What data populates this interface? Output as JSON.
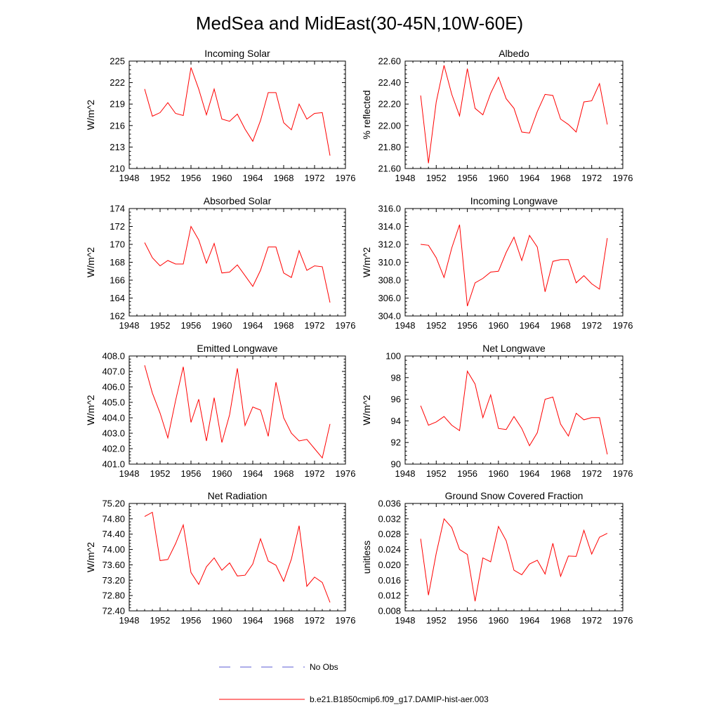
{
  "figure": {
    "title": "MedSea and MidEast(30-45N,10W-60E)"
  },
  "legend": {
    "items": [
      {
        "label": "No Obs",
        "style": "dashed",
        "color": "#5b5bd6"
      },
      {
        "label": "b.e21.B1850cmip6.f09_g17.DAMIP-hist-aer.003",
        "style": "solid",
        "color": "#ff0000"
      }
    ]
  },
  "chart_data": [
    {
      "type": "line",
      "title": "Incoming Solar",
      "ylabel": "W/m^2",
      "xlim": [
        1948,
        1976
      ],
      "ylim": [
        210,
        225
      ],
      "xticks": [
        "1948",
        "1952",
        "1956",
        "1960",
        "1964",
        "1968",
        "1972",
        "1976"
      ],
      "yticks": [
        "210",
        "213",
        "216",
        "219",
        "222",
        "225"
      ],
      "x": [
        1950,
        1951,
        1952,
        1953,
        1954,
        1955,
        1956,
        1957,
        1958,
        1959,
        1960,
        1961,
        1962,
        1963,
        1964,
        1965,
        1966,
        1967,
        1968,
        1969,
        1970,
        1971,
        1972,
        1973,
        1974
      ],
      "series": [
        {
          "values": [
            221.1,
            217.3,
            217.8,
            219.2,
            217.7,
            217.4,
            224.1,
            221.1,
            217.5,
            221.1,
            216.9,
            216.6,
            217.6,
            215.5,
            213.8,
            216.7,
            220.6,
            220.6,
            216.4,
            215.4,
            219.0,
            216.9,
            217.7,
            217.8,
            211.8
          ]
        }
      ]
    },
    {
      "type": "line",
      "title": "Albedo",
      "ylabel": "% reflected",
      "xlim": [
        1948,
        1976
      ],
      "ylim": [
        21.6,
        22.6
      ],
      "xticks": [
        "1948",
        "1952",
        "1956",
        "1960",
        "1964",
        "1968",
        "1972",
        "1976"
      ],
      "yticks": [
        "21.60",
        "21.80",
        "22.00",
        "22.20",
        "22.40",
        "22.60"
      ],
      "x": [
        1950,
        1951,
        1952,
        1953,
        1954,
        1955,
        1956,
        1957,
        1958,
        1959,
        1960,
        1961,
        1962,
        1963,
        1964,
        1965,
        1966,
        1967,
        1968,
        1969,
        1970,
        1971,
        1972,
        1973,
        1974
      ],
      "series": [
        {
          "values": [
            22.28,
            21.65,
            22.22,
            22.56,
            22.29,
            22.09,
            22.53,
            22.16,
            22.1,
            22.3,
            22.45,
            22.25,
            22.16,
            21.94,
            21.93,
            22.13,
            22.29,
            22.28,
            22.06,
            22.01,
            21.94,
            22.22,
            22.23,
            22.39,
            22.01
          ]
        }
      ]
    },
    {
      "type": "line",
      "title": "Absorbed Solar",
      "ylabel": "W/m^2",
      "xlim": [
        1948,
        1976
      ],
      "ylim": [
        162,
        174
      ],
      "xticks": [
        "1948",
        "1952",
        "1956",
        "1960",
        "1964",
        "1968",
        "1972",
        "1976"
      ],
      "yticks": [
        "162",
        "164",
        "166",
        "168",
        "170",
        "172",
        "174"
      ],
      "x": [
        1950,
        1951,
        1952,
        1953,
        1954,
        1955,
        1956,
        1957,
        1958,
        1959,
        1960,
        1961,
        1962,
        1963,
        1964,
        1965,
        1966,
        1967,
        1968,
        1969,
        1970,
        1971,
        1972,
        1973,
        1974
      ],
      "series": [
        {
          "values": [
            170.2,
            168.5,
            167.6,
            168.2,
            167.8,
            167.8,
            172.0,
            170.5,
            167.9,
            170.1,
            166.8,
            166.9,
            167.7,
            166.5,
            165.3,
            167.1,
            169.7,
            169.7,
            166.8,
            166.3,
            169.3,
            167.1,
            167.6,
            167.5,
            163.5
          ]
        }
      ]
    },
    {
      "type": "line",
      "title": "Incoming Longwave",
      "ylabel": "W/m^2",
      "xlim": [
        1948,
        1976
      ],
      "ylim": [
        304,
        316
      ],
      "xticks": [
        "1948",
        "1952",
        "1956",
        "1960",
        "1964",
        "1968",
        "1972",
        "1976"
      ],
      "yticks": [
        "304.0",
        "306.0",
        "308.0",
        "310.0",
        "312.0",
        "314.0",
        "316.0"
      ],
      "x": [
        1950,
        1951,
        1952,
        1953,
        1954,
        1955,
        1956,
        1957,
        1958,
        1959,
        1960,
        1961,
        1962,
        1963,
        1964,
        1965,
        1966,
        1967,
        1968,
        1969,
        1970,
        1971,
        1972,
        1973,
        1974
      ],
      "series": [
        {
          "values": [
            312.0,
            311.9,
            310.5,
            308.3,
            311.6,
            314.2,
            305.1,
            307.7,
            308.2,
            308.9,
            309.0,
            311.1,
            312.8,
            310.2,
            313.0,
            311.7,
            306.7,
            310.1,
            310.3,
            310.3,
            307.7,
            308.5,
            307.6,
            307.0,
            312.7
          ]
        }
      ]
    },
    {
      "type": "line",
      "title": "Emitted Longwave",
      "ylabel": "W/m^2",
      "xlim": [
        1948,
        1976
      ],
      "ylim": [
        401,
        408
      ],
      "xticks": [
        "1948",
        "1952",
        "1956",
        "1960",
        "1964",
        "1968",
        "1972",
        "1976"
      ],
      "yticks": [
        "401.0",
        "402.0",
        "403.0",
        "404.0",
        "405.0",
        "406.0",
        "407.0",
        "408.0"
      ],
      "x": [
        1950,
        1951,
        1952,
        1953,
        1954,
        1955,
        1956,
        1957,
        1958,
        1959,
        1960,
        1961,
        1962,
        1963,
        1964,
        1965,
        1966,
        1967,
        1968,
        1969,
        1970,
        1971,
        1972,
        1973,
        1974
      ],
      "series": [
        {
          "values": [
            407.4,
            405.6,
            404.3,
            402.7,
            405.1,
            407.3,
            403.7,
            405.2,
            402.5,
            405.3,
            402.4,
            404.2,
            407.2,
            403.5,
            404.7,
            404.5,
            402.8,
            406.3,
            404.0,
            403.0,
            402.5,
            402.6,
            402.0,
            401.4,
            403.6
          ]
        }
      ]
    },
    {
      "type": "line",
      "title": "Net Longwave",
      "ylabel": "W/m^2",
      "xlim": [
        1948,
        1976
      ],
      "ylim": [
        90,
        100
      ],
      "xticks": [
        "1948",
        "1952",
        "1956",
        "1960",
        "1964",
        "1968",
        "1972",
        "1976"
      ],
      "yticks": [
        "90",
        "92",
        "94",
        "96",
        "98",
        "100"
      ],
      "x": [
        1950,
        1951,
        1952,
        1953,
        1954,
        1955,
        1956,
        1957,
        1958,
        1959,
        1960,
        1961,
        1962,
        1963,
        1964,
        1965,
        1966,
        1967,
        1968,
        1969,
        1970,
        1971,
        1972,
        1973,
        1974
      ],
      "series": [
        {
          "values": [
            95.4,
            93.6,
            93.9,
            94.4,
            93.6,
            93.1,
            98.6,
            97.4,
            94.3,
            96.4,
            93.3,
            93.2,
            94.4,
            93.3,
            91.7,
            92.9,
            96.0,
            96.2,
            93.7,
            92.6,
            94.7,
            94.1,
            94.3,
            94.3,
            90.9
          ]
        }
      ]
    },
    {
      "type": "line",
      "title": "Net Radiation",
      "ylabel": "W/m^2",
      "xlim": [
        1948,
        1976
      ],
      "ylim": [
        72.4,
        75.2
      ],
      "xticks": [
        "1948",
        "1952",
        "1956",
        "1960",
        "1964",
        "1968",
        "1972",
        "1976"
      ],
      "yticks": [
        "72.40",
        "72.80",
        "73.20",
        "73.60",
        "74.00",
        "74.40",
        "74.80",
        "75.20"
      ],
      "x": [
        1950,
        1951,
        1952,
        1953,
        1954,
        1955,
        1956,
        1957,
        1958,
        1959,
        1960,
        1961,
        1962,
        1963,
        1964,
        1965,
        1966,
        1967,
        1968,
        1969,
        1970,
        1971,
        1972,
        1973,
        1974
      ],
      "series": [
        {
          "values": [
            74.86,
            74.97,
            73.71,
            73.74,
            74.15,
            74.64,
            73.4,
            73.09,
            73.55,
            73.78,
            73.46,
            73.65,
            73.31,
            73.33,
            73.62,
            74.28,
            73.7,
            73.59,
            73.17,
            73.75,
            74.62,
            73.04,
            73.28,
            73.14,
            72.62
          ]
        }
      ]
    },
    {
      "type": "line",
      "title": "Ground Snow Covered Fraction",
      "ylabel": "unitless",
      "xlim": [
        1948,
        1976
      ],
      "ylim": [
        0.008,
        0.036
      ],
      "xticks": [
        "1948",
        "1952",
        "1956",
        "1960",
        "1964",
        "1968",
        "1972",
        "1976"
      ],
      "yticks": [
        "0.008",
        "0.012",
        "0.016",
        "0.020",
        "0.024",
        "0.028",
        "0.032",
        "0.036"
      ],
      "x": [
        1950,
        1951,
        1952,
        1953,
        1954,
        1955,
        1956,
        1957,
        1958,
        1959,
        1960,
        1961,
        1962,
        1963,
        1964,
        1965,
        1966,
        1967,
        1968,
        1969,
        1970,
        1971,
        1972,
        1973,
        1974
      ],
      "series": [
        {
          "values": [
            0.0268,
            0.0121,
            0.023,
            0.032,
            0.0297,
            0.024,
            0.0227,
            0.0105,
            0.0218,
            0.0208,
            0.03,
            0.0263,
            0.0186,
            0.0174,
            0.0202,
            0.0212,
            0.0176,
            0.0256,
            0.017,
            0.0223,
            0.0222,
            0.029,
            0.0228,
            0.0272,
            0.0282
          ]
        }
      ]
    }
  ]
}
